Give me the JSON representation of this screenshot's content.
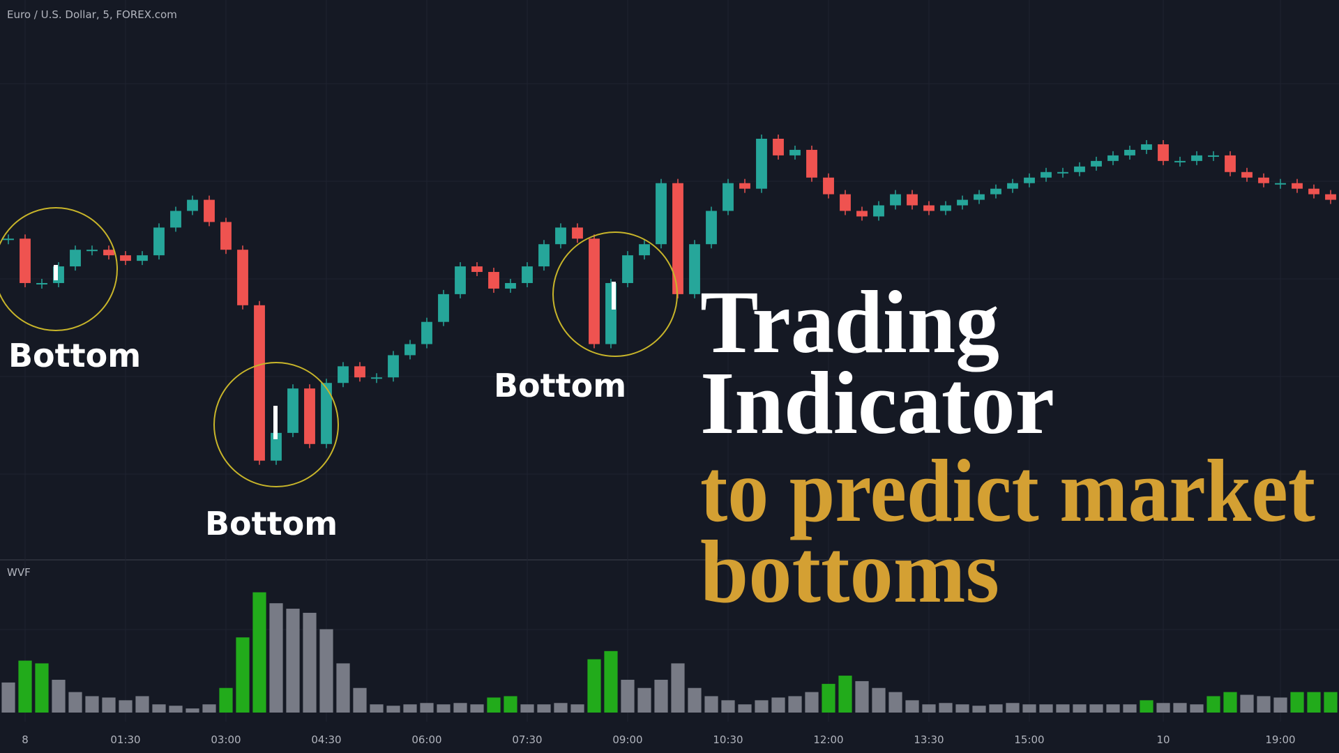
{
  "chart_data": [
    {
      "type": "candlestick",
      "title": "Euro / U.S. Dollar, 5, FOREX.com",
      "categories": [
        null,
        "8",
        null,
        null,
        null,
        null,
        null,
        "01:30",
        null,
        null,
        null,
        null,
        null,
        "03:00",
        null,
        null,
        null,
        null,
        null,
        "04:30",
        null,
        null,
        null,
        null,
        null,
        "06:00",
        null,
        null,
        null,
        null,
        null,
        "07:30",
        null,
        null,
        null,
        null,
        null,
        "09:00",
        null,
        null,
        null,
        null,
        null,
        "10:30",
        null,
        null,
        null,
        null,
        null,
        "12:00",
        null,
        null,
        null,
        null,
        null,
        "13:30",
        null,
        null,
        null,
        null,
        null,
        "15:00",
        null,
        null,
        null,
        null,
        null,
        null,
        null,
        "10",
        null,
        null,
        null,
        null,
        null,
        null,
        "19:00",
        null,
        null,
        null
      ],
      "closes": [
        57,
        49,
        49,
        52,
        55,
        55,
        54,
        53,
        54,
        59,
        62,
        64,
        60,
        55,
        45,
        17,
        22,
        30,
        20,
        31,
        34,
        32,
        32,
        36,
        38,
        42,
        47,
        52,
        51,
        48,
        49,
        52,
        56,
        59,
        57,
        38,
        49,
        54,
        56,
        67,
        47,
        56,
        62,
        67,
        66,
        75,
        72,
        73,
        68,
        65,
        62,
        61,
        63,
        65,
        63,
        62,
        63,
        64,
        65,
        66,
        67,
        68,
        69,
        69,
        70,
        71,
        72,
        73,
        74,
        71,
        71,
        72,
        72,
        69,
        68,
        67,
        67,
        66,
        65,
        64
      ],
      "up_color": "#26a69a",
      "down_color": "#ef5350",
      "ylim": [
        0,
        100
      ],
      "grid": true,
      "annotations": [
        "Bottom",
        "Bottom",
        "Bottom"
      ],
      "headline": [
        "Trading",
        "Indicator"
      ],
      "subheadline": [
        "to predict market",
        "bottoms"
      ]
    },
    {
      "type": "bar",
      "title": "WVF",
      "values": [
        22,
        38,
        36,
        24,
        15,
        12,
        11,
        9,
        12,
        6,
        5,
        3,
        6,
        18,
        55,
        88,
        80,
        76,
        73,
        61,
        36,
        18,
        6,
        5,
        6,
        7,
        6,
        7,
        6,
        11,
        12,
        6,
        6,
        7,
        6,
        39,
        45,
        24,
        18,
        24,
        36,
        18,
        12,
        9,
        6,
        9,
        11,
        12,
        15,
        21,
        27,
        23,
        18,
        15,
        9,
        6,
        7,
        6,
        5,
        6,
        7,
        6,
        6,
        6,
        6,
        6,
        6,
        6,
        9,
        7,
        7,
        6,
        12,
        15,
        13,
        12,
        11,
        15,
        15,
        15
      ],
      "signal": [
        false,
        true,
        true,
        false,
        false,
        false,
        false,
        false,
        false,
        false,
        false,
        false,
        false,
        true,
        true,
        true,
        false,
        false,
        false,
        false,
        false,
        false,
        false,
        false,
        false,
        false,
        false,
        false,
        false,
        true,
        true,
        false,
        false,
        false,
        false,
        true,
        true,
        false,
        false,
        false,
        false,
        false,
        false,
        false,
        false,
        false,
        false,
        false,
        false,
        true,
        true,
        false,
        false,
        false,
        false,
        false,
        false,
        false,
        false,
        false,
        false,
        false,
        false,
        false,
        false,
        false,
        false,
        false,
        true,
        false,
        false,
        false,
        true,
        true,
        false,
        false,
        false,
        true,
        true,
        true
      ],
      "color": "#787b86",
      "signal_color": "#22ab1b",
      "ylim": [
        0,
        100
      ]
    }
  ]
}
